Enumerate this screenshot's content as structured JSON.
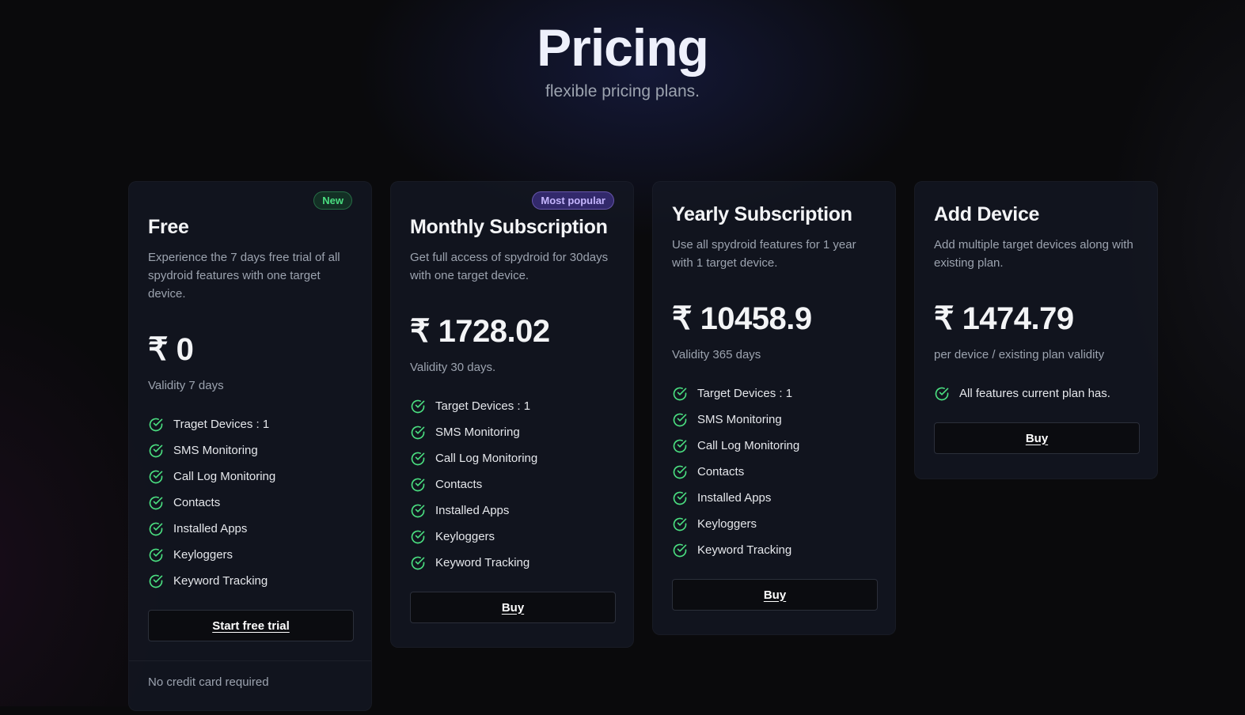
{
  "header": {
    "title": "Pricing",
    "subtitle": "flexible pricing plans."
  },
  "currency_symbol": "₹",
  "accent_colors": {
    "check": "#4ade80",
    "badge_new": "#4ade80",
    "badge_popular": "#a78bfa"
  },
  "plans": [
    {
      "name": "Free",
      "badge": "New",
      "description": "Experience the 7 days free trial of all spydroid features with one target device.",
      "price": "₹ 0",
      "validity": "Validity 7 days",
      "features": [
        "Traget Devices : 1",
        "SMS Monitoring",
        "Call Log Monitoring",
        "Contacts",
        "Installed Apps",
        "Keyloggers",
        "Keyword Tracking"
      ],
      "button": "Start free trial",
      "footer": "No credit card required"
    },
    {
      "name": "Monthly Subscription",
      "badge": "Most popular",
      "description": "Get full access of spydroid for 30days with one target device.",
      "price": "₹ 1728.02",
      "validity": "Validity 30 days.",
      "features": [
        "Target Devices : 1",
        "SMS Monitoring",
        "Call Log Monitoring",
        "Contacts",
        "Installed Apps",
        "Keyloggers",
        "Keyword Tracking"
      ],
      "button": "Buy"
    },
    {
      "name": "Yearly Subscription",
      "description": "Use all spydroid features for 1 year with 1 target device.",
      "price": "₹ 10458.9",
      "validity": "Validity 365 days",
      "features": [
        "Target Devices : 1",
        "SMS Monitoring",
        "Call Log Monitoring",
        "Contacts",
        "Installed Apps",
        "Keyloggers",
        "Keyword Tracking"
      ],
      "button": "Buy"
    },
    {
      "name": "Add Device",
      "description": "Add multiple target devices along with existing plan.",
      "price": "₹ 1474.79",
      "validity": "per device / existing plan validity",
      "features": [
        "All features current plan has."
      ],
      "button": "Buy"
    }
  ]
}
